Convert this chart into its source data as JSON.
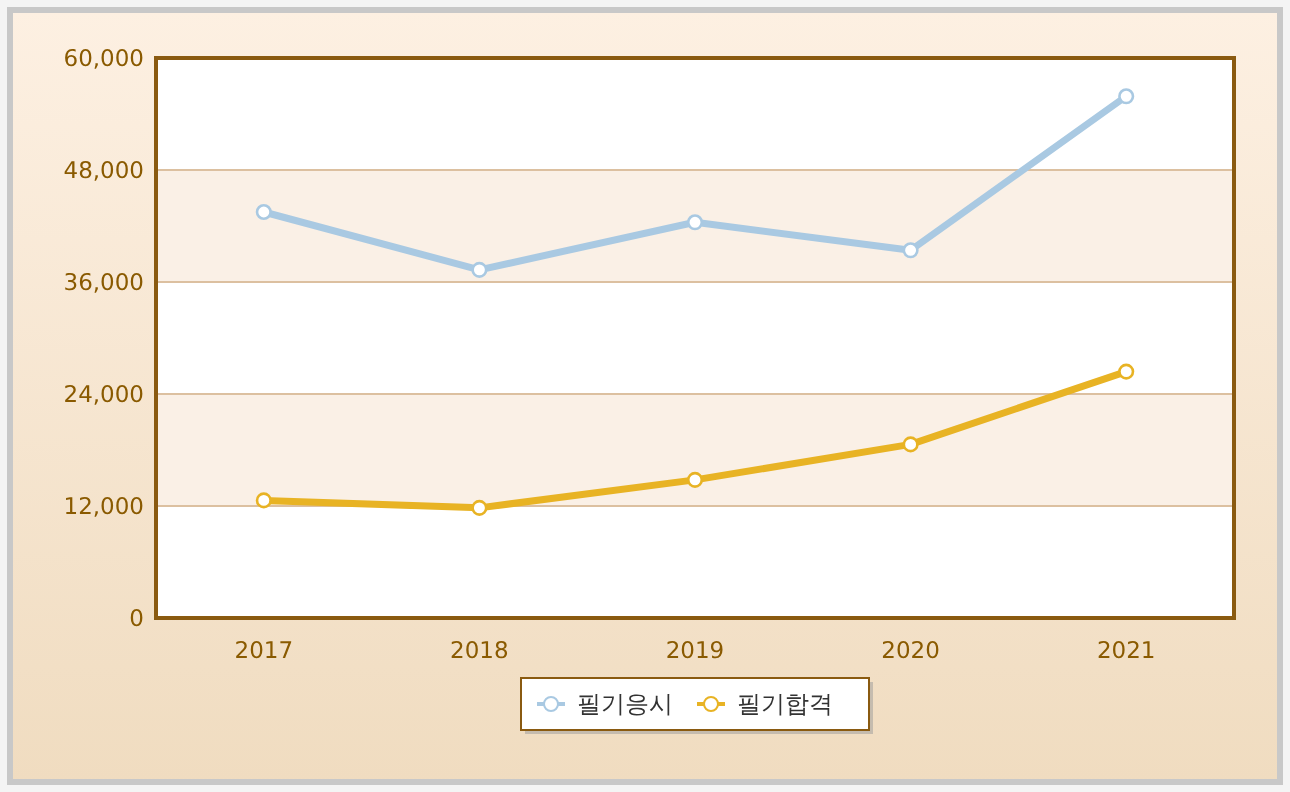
{
  "chart_data": {
    "type": "line",
    "categories": [
      "2017",
      "2018",
      "2019",
      "2020",
      "2021"
    ],
    "series": [
      {
        "name": "필기응시",
        "color": "#a9c9e2",
        "values": [
          43500,
          37300,
          42400,
          39400,
          55900
        ]
      },
      {
        "name": "필기합격",
        "color": "#e8b324",
        "values": [
          12600,
          11800,
          14800,
          18600,
          26400
        ]
      }
    ],
    "ylim": [
      0,
      60000
    ],
    "yticks": [
      {
        "value": 0,
        "label": "0"
      },
      {
        "value": 12000,
        "label": "12,000"
      },
      {
        "value": 24000,
        "label": "24,000"
      },
      {
        "value": 36000,
        "label": "36,000"
      },
      {
        "value": 48000,
        "label": "48,000"
      },
      {
        "value": 60000,
        "label": "60,000"
      }
    ],
    "grid": "y",
    "legend": "bottom",
    "marker": "circle",
    "line_style": "solid"
  }
}
